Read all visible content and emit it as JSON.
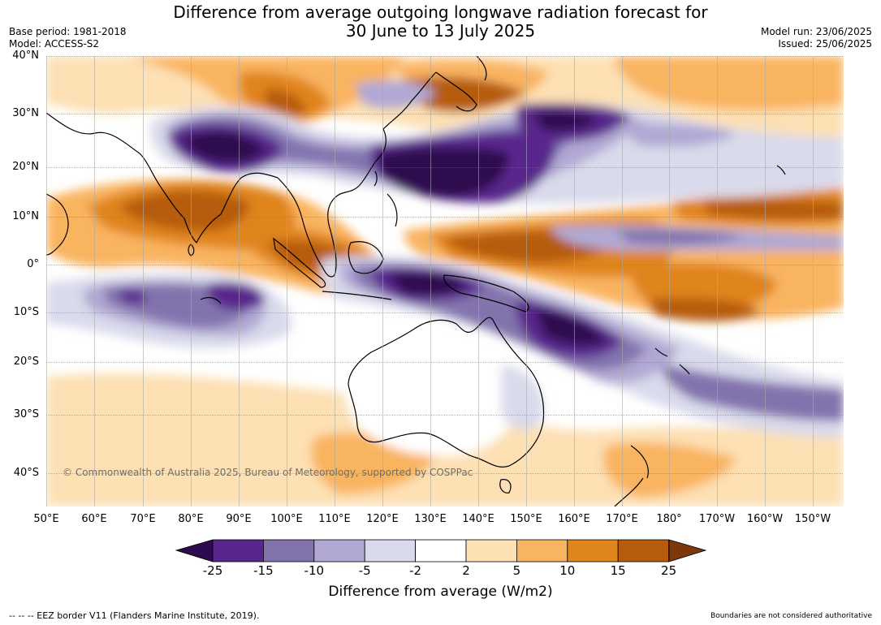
{
  "header": {
    "title_line1": "Difference from average outgoing longwave radiation forecast for",
    "title_line2": "30 June to 13 July 2025",
    "base_period": "Base period: 1981-2018",
    "model": "Model: ACCESS-S2",
    "model_run": "Model run: 23/06/2025",
    "issued": "Issued: 25/06/2025"
  },
  "map": {
    "lat_labels": [
      "40°N",
      "30°N",
      "20°N",
      "10°N",
      "0°",
      "10°S",
      "20°S",
      "30°S",
      "40°S"
    ],
    "lon_labels": [
      "50°E",
      "60°E",
      "70°E",
      "80°E",
      "90°E",
      "100°E",
      "110°E",
      "120°E",
      "130°E",
      "140°E",
      "150°E",
      "160°E",
      "170°E",
      "180°",
      "170°W",
      "160°W",
      "150°W"
    ],
    "copyright": "© Commonwealth of Australia 2025, Bureau of Meteorology, supported by COSPPac"
  },
  "colorbar": {
    "ticks": [
      "-25",
      "-15",
      "-10",
      "-5",
      "-2",
      "2",
      "5",
      "10",
      "15",
      "25"
    ],
    "colors": {
      "lt_-25": "#2e0a4f",
      "-25_-15": "#58268c",
      "-15_-10": "#8373ad",
      "-10_-5": "#b1a9d3",
      "-5_-2": "#d9daeb",
      "-2_2": "#ffffff",
      "2_5": "#fde0b4",
      "5_10": "#f9b461",
      "10_15": "#e0841c",
      "15_25": "#b65c0c",
      "gt_25": "#7c3809"
    },
    "label": "Difference from average (W/m2)"
  },
  "footer": {
    "left": "--  --  -- EEZ border V11 (Flanders Marine Institute, 2019).",
    "right": "Boundaries are not considered authoritative"
  }
}
